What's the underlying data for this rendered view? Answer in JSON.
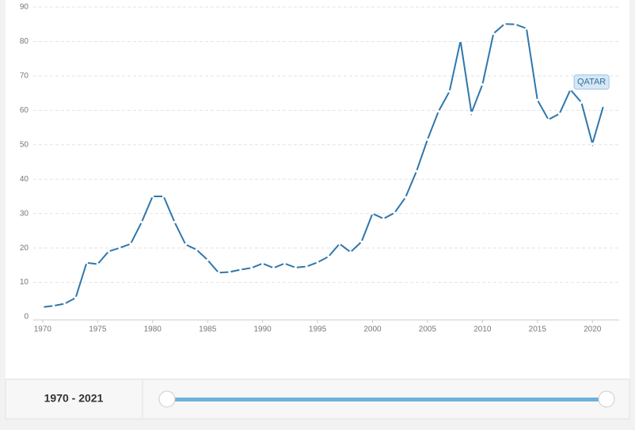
{
  "chart_data": {
    "type": "line",
    "x": [
      1970,
      1971,
      1972,
      1973,
      1974,
      1975,
      1976,
      1977,
      1978,
      1979,
      1980,
      1981,
      1982,
      1983,
      1984,
      1985,
      1986,
      1987,
      1988,
      1989,
      1990,
      1991,
      1992,
      1993,
      1994,
      1995,
      1996,
      1997,
      1998,
      1999,
      2000,
      2001,
      2002,
      2003,
      2004,
      2005,
      2006,
      2007,
      2008,
      2009,
      2010,
      2011,
      2012,
      2013,
      2014,
      2015,
      2016,
      2017,
      2018,
      2019,
      2020,
      2021
    ],
    "series": [
      {
        "name": "QATAR",
        "color": "#2f77ad",
        "values": [
          2.8,
          3.2,
          3.8,
          5.5,
          15.7,
          15.3,
          19,
          20,
          21.2,
          27.5,
          35,
          35,
          27.5,
          21,
          19.5,
          16.5,
          12.8,
          13,
          13.7,
          14.2,
          15.5,
          14.2,
          15.5,
          14.3,
          14.6,
          15.8,
          17.5,
          21.2,
          18.8,
          21.8,
          30,
          28.5,
          30.2,
          34.7,
          42.3,
          51.5,
          59.7,
          65.5,
          80.2,
          59.3,
          67.5,
          82.3,
          85.1,
          85,
          83.8,
          63,
          57.3,
          59,
          66,
          62.3,
          50.3,
          61.3
        ]
      }
    ],
    "xlim": [
      1969,
      2022
    ],
    "xticks": [
      1970,
      1975,
      1980,
      1985,
      1990,
      1995,
      2000,
      2005,
      2010,
      2015,
      2020
    ],
    "ylim": [
      0,
      90
    ],
    "yticks": [
      0,
      10,
      20,
      30,
      40,
      50,
      60,
      70,
      80,
      90
    ],
    "grid": true,
    "range_label": "1970 - 2021"
  }
}
